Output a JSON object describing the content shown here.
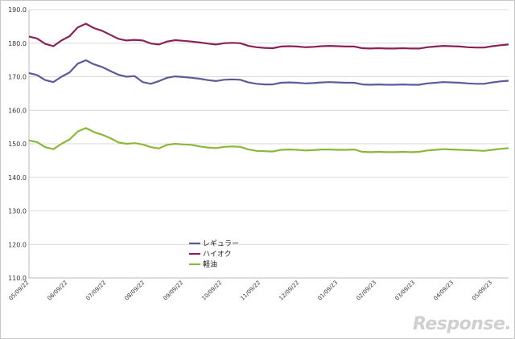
{
  "chart_data": {
    "type": "line",
    "ylim": [
      110.0,
      190.0
    ],
    "yticks": [
      "110.0",
      "120.0",
      "130.0",
      "140.0",
      "150.0",
      "160.0",
      "170.0",
      "180.0",
      "190.0"
    ],
    "xtick_labels": [
      "05/09/22",
      "06/09/22",
      "07/09/22",
      "08/09/22",
      "09/09/22",
      "10/09/22",
      "11/09/22",
      "12/09/22",
      "01/09/23",
      "02/09/23",
      "03/09/23",
      "04/09/23",
      "05/09/23"
    ],
    "grid": "horizontal",
    "legend_position": "center-left",
    "series": [
      {
        "name": "レギュラー",
        "color": "#5b5a9c",
        "values": [
          171.1,
          170.5,
          169.0,
          168.4,
          170.0,
          171.3,
          173.9,
          174.9,
          173.7,
          172.9,
          171.7,
          170.6,
          170.0,
          170.2,
          168.4,
          167.9,
          168.7,
          169.7,
          170.1,
          169.9,
          169.7,
          169.4,
          169.0,
          168.7,
          169.1,
          169.2,
          169.1,
          168.3,
          167.9,
          167.7,
          167.7,
          168.2,
          168.3,
          168.2,
          168.0,
          168.1,
          168.3,
          168.4,
          168.3,
          168.2,
          168.2,
          167.7,
          167.6,
          167.7,
          167.6,
          167.6,
          167.7,
          167.6,
          167.6,
          168.0,
          168.2,
          168.4,
          168.3,
          168.2,
          168.0,
          167.9,
          167.9,
          168.3,
          168.6,
          168.8
        ]
      },
      {
        "name": "ハイオク",
        "color": "#8b2256",
        "values": [
          182.0,
          181.4,
          179.8,
          179.1,
          180.8,
          182.1,
          184.7,
          185.8,
          184.5,
          183.7,
          182.5,
          181.3,
          180.8,
          181.0,
          180.8,
          179.9,
          179.6,
          180.5,
          180.9,
          180.7,
          180.5,
          180.2,
          179.9,
          179.6,
          180.0,
          180.1,
          180.0,
          179.2,
          178.8,
          178.6,
          178.5,
          179.0,
          179.1,
          179.0,
          178.8,
          178.9,
          179.1,
          179.2,
          179.1,
          179.0,
          179.0,
          178.5,
          178.4,
          178.5,
          178.4,
          178.4,
          178.5,
          178.4,
          178.4,
          178.8,
          179.0,
          179.2,
          179.1,
          179.0,
          178.8,
          178.7,
          178.7,
          179.1,
          179.4,
          179.6
        ]
      },
      {
        "name": "軽油",
        "color": "#8ab83a",
        "values": [
          151.0,
          150.5,
          149.0,
          148.4,
          150.0,
          151.3,
          153.7,
          154.7,
          153.5,
          152.7,
          151.7,
          150.4,
          150.0,
          150.2,
          149.8,
          149.0,
          148.6,
          149.7,
          150.0,
          149.8,
          149.7,
          149.2,
          148.9,
          148.7,
          149.1,
          149.2,
          149.1,
          148.3,
          147.9,
          147.8,
          147.7,
          148.2,
          148.3,
          148.2,
          148.0,
          148.1,
          148.3,
          148.3,
          148.2,
          148.2,
          148.3,
          147.6,
          147.5,
          147.6,
          147.5,
          147.5,
          147.6,
          147.5,
          147.6,
          148.0,
          148.2,
          148.4,
          148.3,
          148.2,
          148.1,
          148.0,
          147.9,
          148.2,
          148.5,
          148.7
        ]
      }
    ]
  },
  "watermark": "Response."
}
